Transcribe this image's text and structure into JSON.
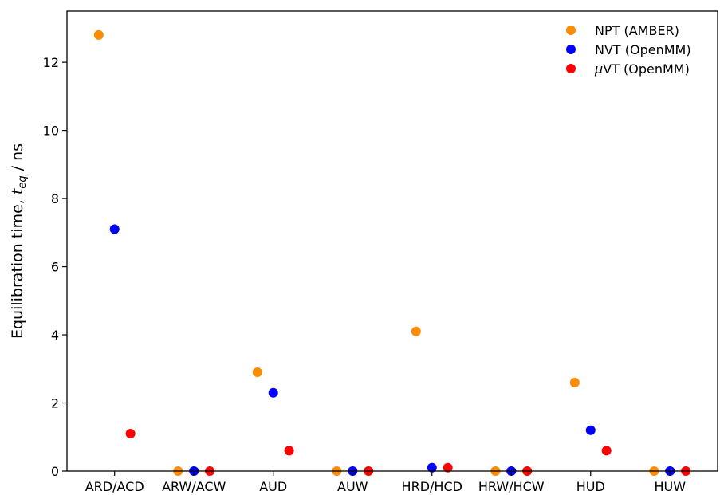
{
  "chart_data": {
    "type": "scatter",
    "categories": [
      "ARD/ACD",
      "ARW/ACW",
      "AUD",
      "AUW",
      "HRD/HCD",
      "HRW/HCW",
      "HUD",
      "HUW"
    ],
    "series": [
      {
        "name": "NPT (AMBER)",
        "color": "#ff8c00",
        "values": [
          12.8,
          0.0,
          2.9,
          0.0,
          4.1,
          0.0,
          2.6,
          0.0
        ]
      },
      {
        "name": "NVT (OpenMM)",
        "color": "#0000ff",
        "values": [
          7.1,
          0.0,
          2.3,
          0.0,
          0.1,
          0.0,
          1.2,
          0.0
        ]
      },
      {
        "name": "VT (OpenMM)",
        "name_prefix": "μ",
        "color": "#ff0000",
        "values": [
          1.1,
          0.0,
          0.6,
          0.0,
          0.1,
          0.0,
          0.6,
          0.0
        ]
      }
    ],
    "title": "",
    "xlabel": "",
    "ylabel": {
      "prefix": "Equilibration time, ",
      "var": "t",
      "sub": "eq",
      "suffix": " / ns"
    },
    "ylim": [
      0,
      13.5
    ],
    "yticks": [
      0,
      2,
      4,
      6,
      8,
      10,
      12
    ],
    "grid": false,
    "legend_position": "top-right"
  }
}
